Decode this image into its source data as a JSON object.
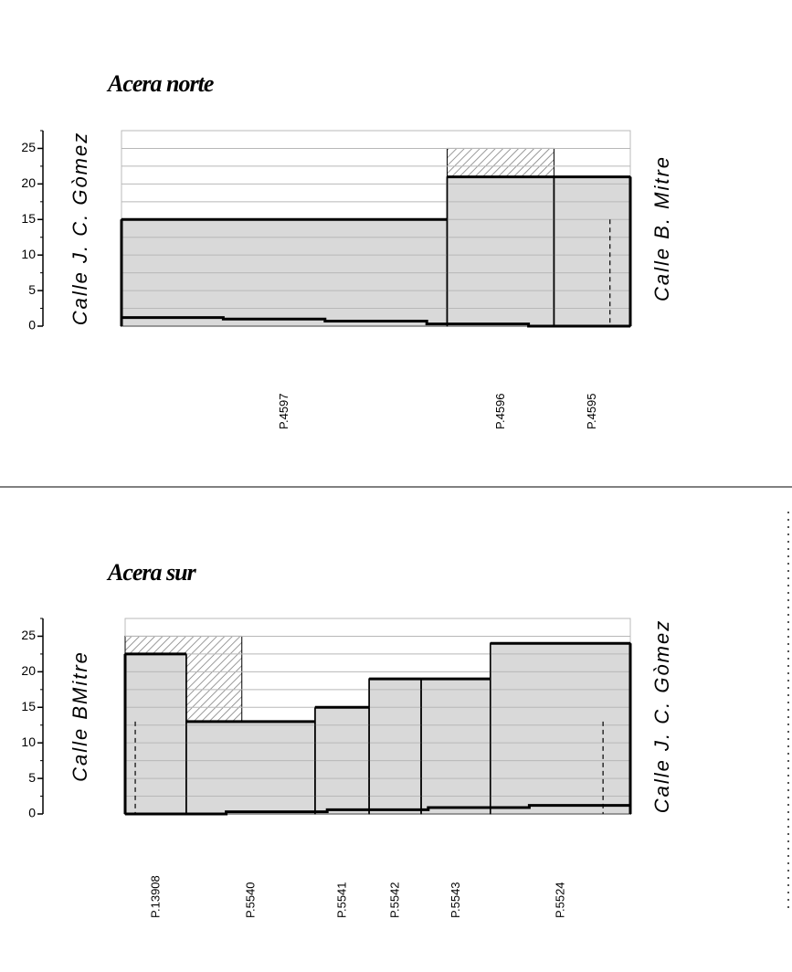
{
  "chart_data": [
    {
      "type": "step-bar",
      "title": "Acera norte",
      "left_label": "Calle J. C. Gòmez",
      "right_label": "Calle B. Mitre",
      "categories": [
        "P.4597",
        "P.4596",
        "P.4595"
      ],
      "values": [
        15,
        21,
        21
      ],
      "bins": [
        0,
        64,
        85,
        100
      ],
      "xlim": [
        0,
        100
      ],
      "ylim": [
        0,
        27.5
      ],
      "yticks": [
        0,
        5,
        10,
        15,
        20,
        25
      ],
      "gridlines": [
        0,
        2.5,
        5,
        7.5,
        10,
        12.5,
        15,
        17.5,
        20,
        22.5,
        25,
        27.5
      ],
      "hatch": [
        {
          "from": 64,
          "to": 85,
          "value": 25
        }
      ],
      "ground_bins": [
        0,
        20,
        40,
        60,
        80,
        100
      ],
      "ground": [
        1.2,
        1.0,
        0.7,
        0.3,
        0
      ],
      "dashed_x": [
        96
      ],
      "color": "#d9d9d9"
    },
    {
      "type": "step-bar",
      "title": "Acera sur",
      "left_label": "Calle BMitre",
      "right_label": "Calle J. C. Gòmez",
      "categories": [
        "P.13908",
        "P.5540",
        "P.5541",
        "P.5542",
        "P.5543",
        "P.5524"
      ],
      "values": [
        22.5,
        13,
        15,
        19,
        19,
        24
      ],
      "bins": [
        0,
        12.1,
        37.6,
        48.3,
        58.6,
        72.3,
        100
      ],
      "xlim": [
        0,
        100
      ],
      "ylim": [
        0,
        27.5
      ],
      "yticks": [
        0,
        5,
        10,
        15,
        20,
        25
      ],
      "gridlines": [
        0,
        2.5,
        5,
        7.5,
        10,
        12.5,
        15,
        17.5,
        20,
        22.5,
        25,
        27.5
      ],
      "hatch": [
        {
          "from": 0,
          "to": 23.1,
          "value": 25
        }
      ],
      "ground_bins": [
        0,
        20,
        40,
        60,
        80,
        100
      ],
      "ground": [
        0,
        0.3,
        0.6,
        0.9,
        1.2
      ],
      "dashed_x": [
        2,
        94.6
      ],
      "color": "#d9d9d9"
    }
  ]
}
